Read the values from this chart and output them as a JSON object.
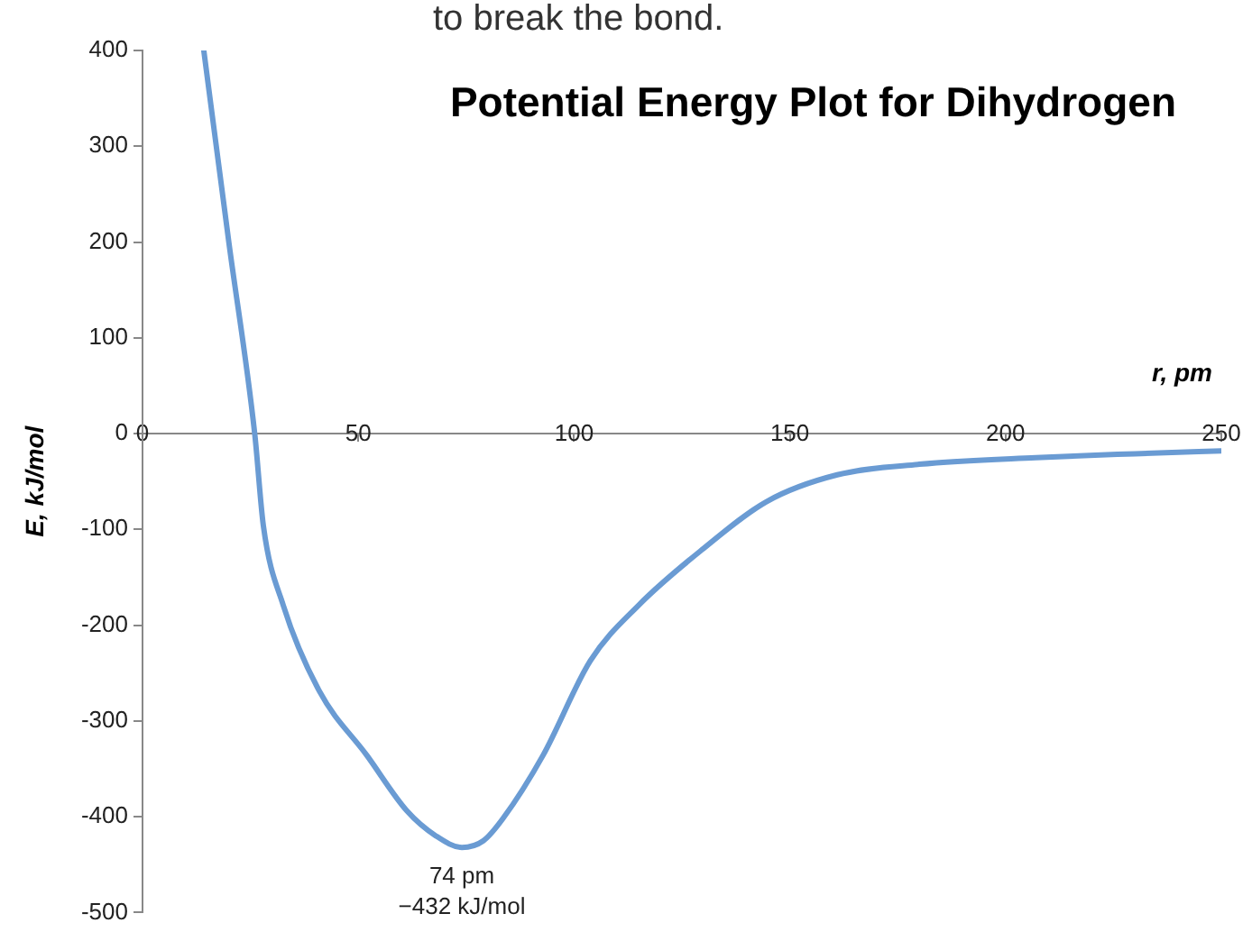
{
  "chart_data": {
    "type": "line",
    "title": "Potential Energy Plot for Dihydrogen",
    "xlabel": "r, pm",
    "ylabel": "E, kJ/mol",
    "annotations": [
      "to break the bond.",
      {
        "text": "74 pm\n−432 kJ/mol",
        "x": 74,
        "y": -432
      }
    ],
    "xlim": [
      0,
      250
    ],
    "xticks": [
      0,
      50,
      100,
      150,
      200,
      250
    ],
    "ylim": [
      -500,
      400
    ],
    "yticks": [
      -500,
      -400,
      -300,
      -200,
      -100,
      0,
      100,
      200,
      300,
      400
    ],
    "grid": false,
    "legend": false,
    "marker": "none",
    "line_style": "solid",
    "series": [
      {
        "color": "#6a9bd3",
        "x": [
          14.2,
          20,
          26,
          28,
          32.6,
          41,
          52,
          61.3,
          68,
          74,
          79,
          83.5,
          92.8,
          103.8,
          115,
          129.7,
          144.6,
          161,
          180,
          207,
          230,
          250
        ],
        "values": [
          400,
          200,
          0,
          -96,
          -179,
          -269,
          -336,
          -394,
          -420,
          -432,
          -425,
          -402,
          -336,
          -237,
          -179,
          -121,
          -71,
          -43,
          -32,
          -25,
          -21,
          -18
        ]
      }
    ]
  }
}
